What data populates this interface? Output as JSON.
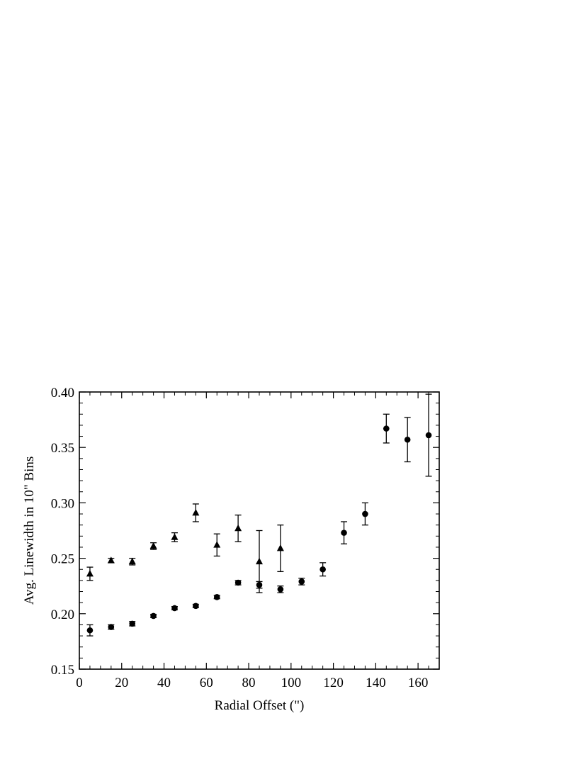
{
  "chart_data": {
    "type": "scatter",
    "title": "",
    "xlabel": "Radial Offset (\")",
    "ylabel": "Avg. Linewidth in 10\" Bins",
    "xlim": [
      0,
      170
    ],
    "ylim": [
      0.15,
      0.4
    ],
    "x_ticks": [
      0,
      20,
      40,
      60,
      80,
      100,
      120,
      140,
      160
    ],
    "y_ticks": [
      0.15,
      0.2,
      0.25,
      0.3,
      0.35,
      0.4
    ],
    "x_tick_labels": [
      "0",
      "20",
      "40",
      "60",
      "80",
      "100",
      "120",
      "140",
      "160"
    ],
    "y_tick_labels": [
      "0.15",
      "0.20",
      "0.25",
      "0.30",
      "0.35",
      "0.40"
    ],
    "grid": false,
    "series": [
      {
        "marker": "circle",
        "points": [
          {
            "x": 5,
            "y": 0.185,
            "err": 0.005
          },
          {
            "x": 15,
            "y": 0.188,
            "err": 0.002
          },
          {
            "x": 25,
            "y": 0.191,
            "err": 0.002
          },
          {
            "x": 35,
            "y": 0.198,
            "err": 0.0015
          },
          {
            "x": 45,
            "y": 0.205,
            "err": 0.0015
          },
          {
            "x": 55,
            "y": 0.207,
            "err": 0.0015
          },
          {
            "x": 65,
            "y": 0.215,
            "err": 0.0015
          },
          {
            "x": 75,
            "y": 0.228,
            "err": 0.002
          },
          {
            "x": 85,
            "y": 0.226,
            "err": 0.003
          },
          {
            "x": 95,
            "y": 0.222,
            "err": 0.003
          },
          {
            "x": 105,
            "y": 0.229,
            "err": 0.003
          },
          {
            "x": 115,
            "y": 0.24,
            "err": 0.006
          },
          {
            "x": 125,
            "y": 0.273,
            "err": 0.01
          },
          {
            "x": 135,
            "y": 0.29,
            "err": 0.01
          },
          {
            "x": 145,
            "y": 0.367,
            "err": 0.013
          },
          {
            "x": 155,
            "y": 0.357,
            "err": 0.02
          },
          {
            "x": 165,
            "y": 0.361,
            "err": 0.037
          }
        ]
      },
      {
        "marker": "triangle",
        "points": [
          {
            "x": 5,
            "y": 0.236,
            "err": 0.006
          },
          {
            "x": 15,
            "y": 0.248,
            "err": 0.002
          },
          {
            "x": 25,
            "y": 0.247,
            "err": 0.003
          },
          {
            "x": 35,
            "y": 0.261,
            "err": 0.003
          },
          {
            "x": 45,
            "y": 0.269,
            "err": 0.004
          },
          {
            "x": 55,
            "y": 0.291,
            "err": 0.008
          },
          {
            "x": 65,
            "y": 0.262,
            "err": 0.01
          },
          {
            "x": 75,
            "y": 0.277,
            "err": 0.012
          },
          {
            "x": 85,
            "y": 0.247,
            "err": 0.028
          },
          {
            "x": 95,
            "y": 0.259,
            "err": 0.021
          }
        ]
      }
    ]
  }
}
